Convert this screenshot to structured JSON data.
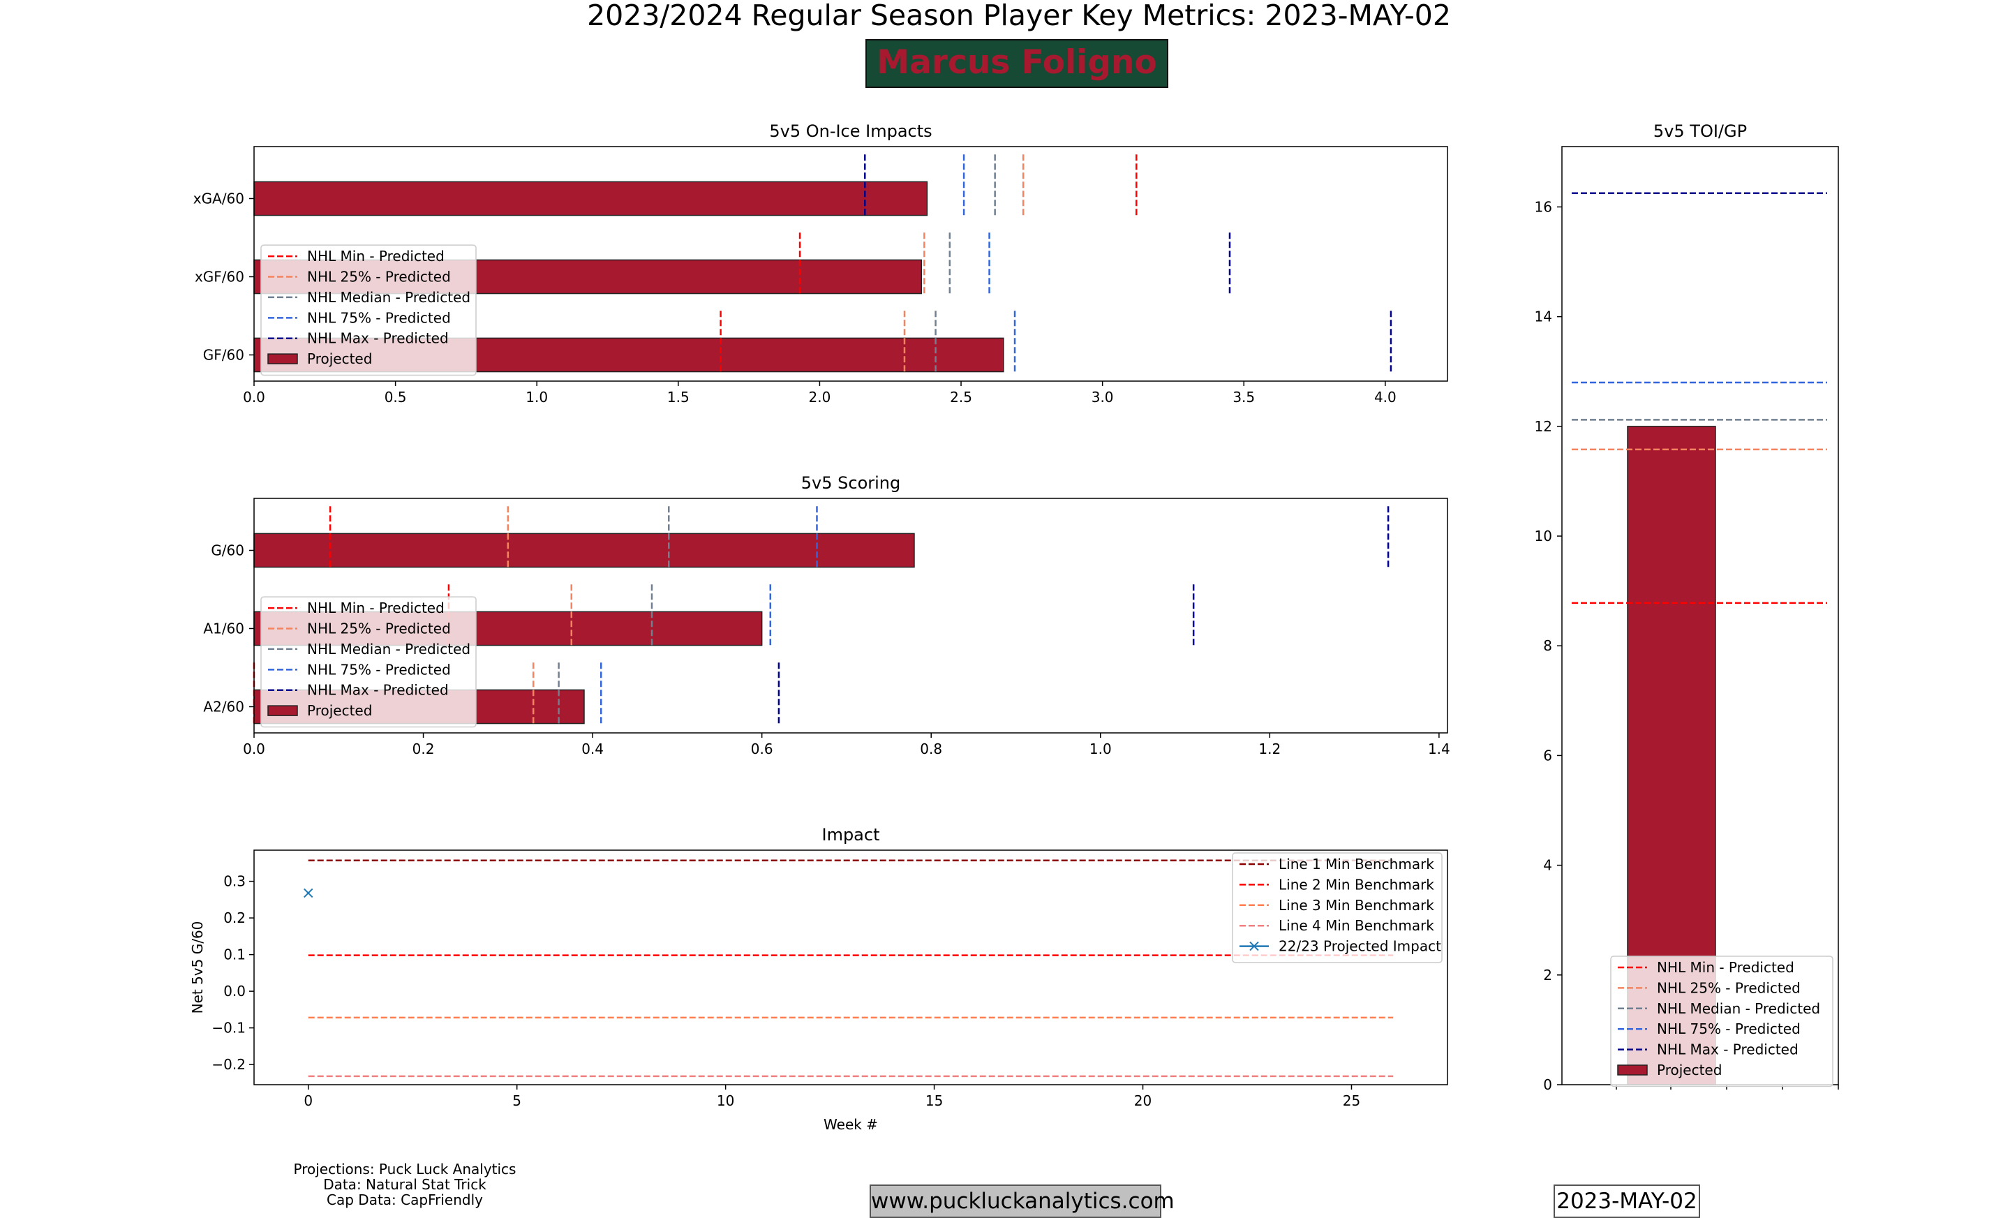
{
  "title": "2023/2024 Regular Season Player Key Metrics: 2023-MAY-02",
  "player_name": "Marcus Foligno",
  "colors": {
    "player_bar": "#a6192e",
    "name_box_bg": "#174a35",
    "nhl_min": "#ff0000",
    "nhl_25": "#f4845f",
    "nhl_median": "#708090",
    "nhl_75": "#3366dd",
    "nhl_max": "#00008b",
    "line1": "#8b0000",
    "line2": "#ff0000",
    "line3": "#ff7f50",
    "line4": "#f08080",
    "projected_marker": "#1f77b4"
  },
  "footer": {
    "credits": [
      "Projections: Puck Luck Analytics",
      "Data: Natural Stat Trick",
      "Cap Data: CapFriendly"
    ],
    "url": "www.puckluckanalytics.com",
    "date": "2023-MAY-02"
  },
  "chart_data": [
    {
      "id": "impacts",
      "type": "bar",
      "orientation": "horizontal",
      "title": "5v5 On-Ice Impacts",
      "categories": [
        "xGA/60",
        "xGF/60",
        "GF/60"
      ],
      "values": [
        2.38,
        2.36,
        2.65
      ],
      "xlim": [
        0,
        4.22
      ],
      "xticks": [
        "0.0",
        "0.5",
        "1.0",
        "1.5",
        "2.0",
        "2.5",
        "3.0",
        "3.5",
        "4.0"
      ],
      "benchmarks": {
        "NHL Min - Predicted": [
          3.12,
          1.93,
          1.65
        ],
        "NHL 25% - Predicted": [
          2.72,
          2.37,
          2.3
        ],
        "NHL Median - Predicted": [
          2.62,
          2.46,
          2.41
        ],
        "NHL 75% - Predicted": [
          2.51,
          2.6,
          2.69
        ],
        "NHL Max - Predicted": [
          2.16,
          3.45,
          4.02
        ]
      },
      "legend": [
        "NHL Min - Predicted",
        "NHL 25% - Predicted",
        "NHL Median - Predicted",
        "NHL 75% - Predicted",
        "NHL Max - Predicted",
        "Projected"
      ]
    },
    {
      "id": "scoring",
      "type": "bar",
      "orientation": "horizontal",
      "title": "5v5 Scoring",
      "categories": [
        "G/60",
        "A1/60",
        "A2/60"
      ],
      "values": [
        0.78,
        0.6,
        0.39
      ],
      "xlim": [
        0,
        1.41
      ],
      "xticks": [
        "0.0",
        "0.2",
        "0.4",
        "0.6",
        "0.8",
        "1.0",
        "1.2",
        "1.4"
      ],
      "benchmarks": {
        "NHL Min - Predicted": [
          0.09,
          0.23,
          0.0
        ],
        "NHL 25% - Predicted": [
          0.3,
          0.375,
          0.33
        ],
        "NHL Median - Predicted": [
          0.49,
          0.47,
          0.36
        ],
        "NHL 75% - Predicted": [
          0.665,
          0.61,
          0.41
        ],
        "NHL Max - Predicted": [
          1.34,
          1.11,
          0.62
        ]
      },
      "legend": [
        "NHL Min - Predicted",
        "NHL 25% - Predicted",
        "NHL Median - Predicted",
        "NHL 75% - Predicted",
        "NHL Max - Predicted",
        "Projected"
      ]
    },
    {
      "id": "impact",
      "type": "line",
      "title": "Impact",
      "xlabel": "Week #",
      "ylabel": "Net 5v5 G/60",
      "xlim": [
        -1.3,
        27.3
      ],
      "ylim": [
        -0.255,
        0.385
      ],
      "xticks": [
        "0",
        "5",
        "10",
        "15",
        "20",
        "25"
      ],
      "yticks": [
        "−0.2",
        "−0.1",
        "0.0",
        "0.1",
        "0.2",
        "0.3"
      ],
      "series": [
        {
          "name": "Line 1 Min Benchmark",
          "x": [
            0,
            26
          ],
          "values": [
            0.357,
            0.357
          ]
        },
        {
          "name": "Line 2 Min Benchmark",
          "x": [
            0,
            26
          ],
          "values": [
            0.098,
            0.098
          ]
        },
        {
          "name": "Line 3 Min Benchmark",
          "x": [
            0,
            26
          ],
          "values": [
            -0.072,
            -0.072
          ]
        },
        {
          "name": "Line 4 Min Benchmark",
          "x": [
            0,
            26
          ],
          "values": [
            -0.232,
            -0.232
          ]
        },
        {
          "name": "22/23 Projected Impact",
          "x": [
            0
          ],
          "values": [
            0.268
          ]
        }
      ]
    },
    {
      "id": "toi",
      "type": "bar",
      "title": "5v5 TOI/GP",
      "categories": [
        ""
      ],
      "values": [
        12.0
      ],
      "ylim": [
        0,
        17.1
      ],
      "yticks": [
        "0",
        "2",
        "4",
        "6",
        "8",
        "10",
        "12",
        "14",
        "16"
      ],
      "benchmarks": {
        "NHL Min - Predicted": 8.78,
        "NHL 25% - Predicted": 11.58,
        "NHL Median - Predicted": 12.12,
        "NHL 75% - Predicted": 12.8,
        "NHL Max - Predicted": 16.25
      },
      "legend": [
        "NHL Min - Predicted",
        "NHL 25% - Predicted",
        "NHL Median - Predicted",
        "NHL 75% - Predicted",
        "NHL Max - Predicted",
        "Projected"
      ]
    }
  ]
}
